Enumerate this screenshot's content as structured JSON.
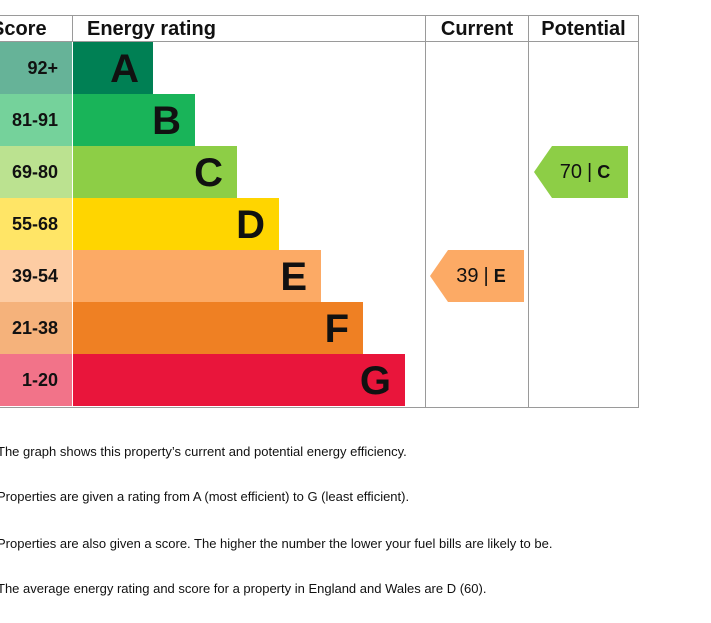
{
  "chart_data": {
    "type": "bar",
    "headers": {
      "score": "Score",
      "rating": "Energy rating",
      "current": "Current",
      "potential": "Potential"
    },
    "bands": [
      {
        "letter": "A",
        "score": "92+",
        "color": "#008054",
        "score_color": "#66b398"
      },
      {
        "letter": "B",
        "score": "81-91",
        "color": "#19b459",
        "score_color": "#75d29b"
      },
      {
        "letter": "C",
        "score": "69-80",
        "color": "#8dce46",
        "score_color": "#bbe290"
      },
      {
        "letter": "D",
        "score": "55-68",
        "color": "#ffd500",
        "score_color": "#ffe566"
      },
      {
        "letter": "E",
        "score": "39-54",
        "color": "#fcaa65",
        "score_color": "#fdcca3"
      },
      {
        "letter": "F",
        "score": "21-38",
        "color": "#ef8023",
        "score_color": "#f5b27b"
      },
      {
        "letter": "G",
        "score": "1-20",
        "color": "#e9153b",
        "score_color": "#f27389"
      }
    ],
    "current": {
      "score": 39,
      "band": "E",
      "color": "#fcaa65"
    },
    "potential": {
      "score": 70,
      "band": "C",
      "color": "#8dce46"
    }
  },
  "notes": [
    "The graph shows this property’s current and potential energy efficiency.",
    "Properties are given a rating from A (most efficient) to G (least efficient).",
    "Properties are also given a score. The higher the number the lower your fuel bills are likely to be.",
    "The average energy rating and score for a property in England and Wales are D (60)."
  ]
}
